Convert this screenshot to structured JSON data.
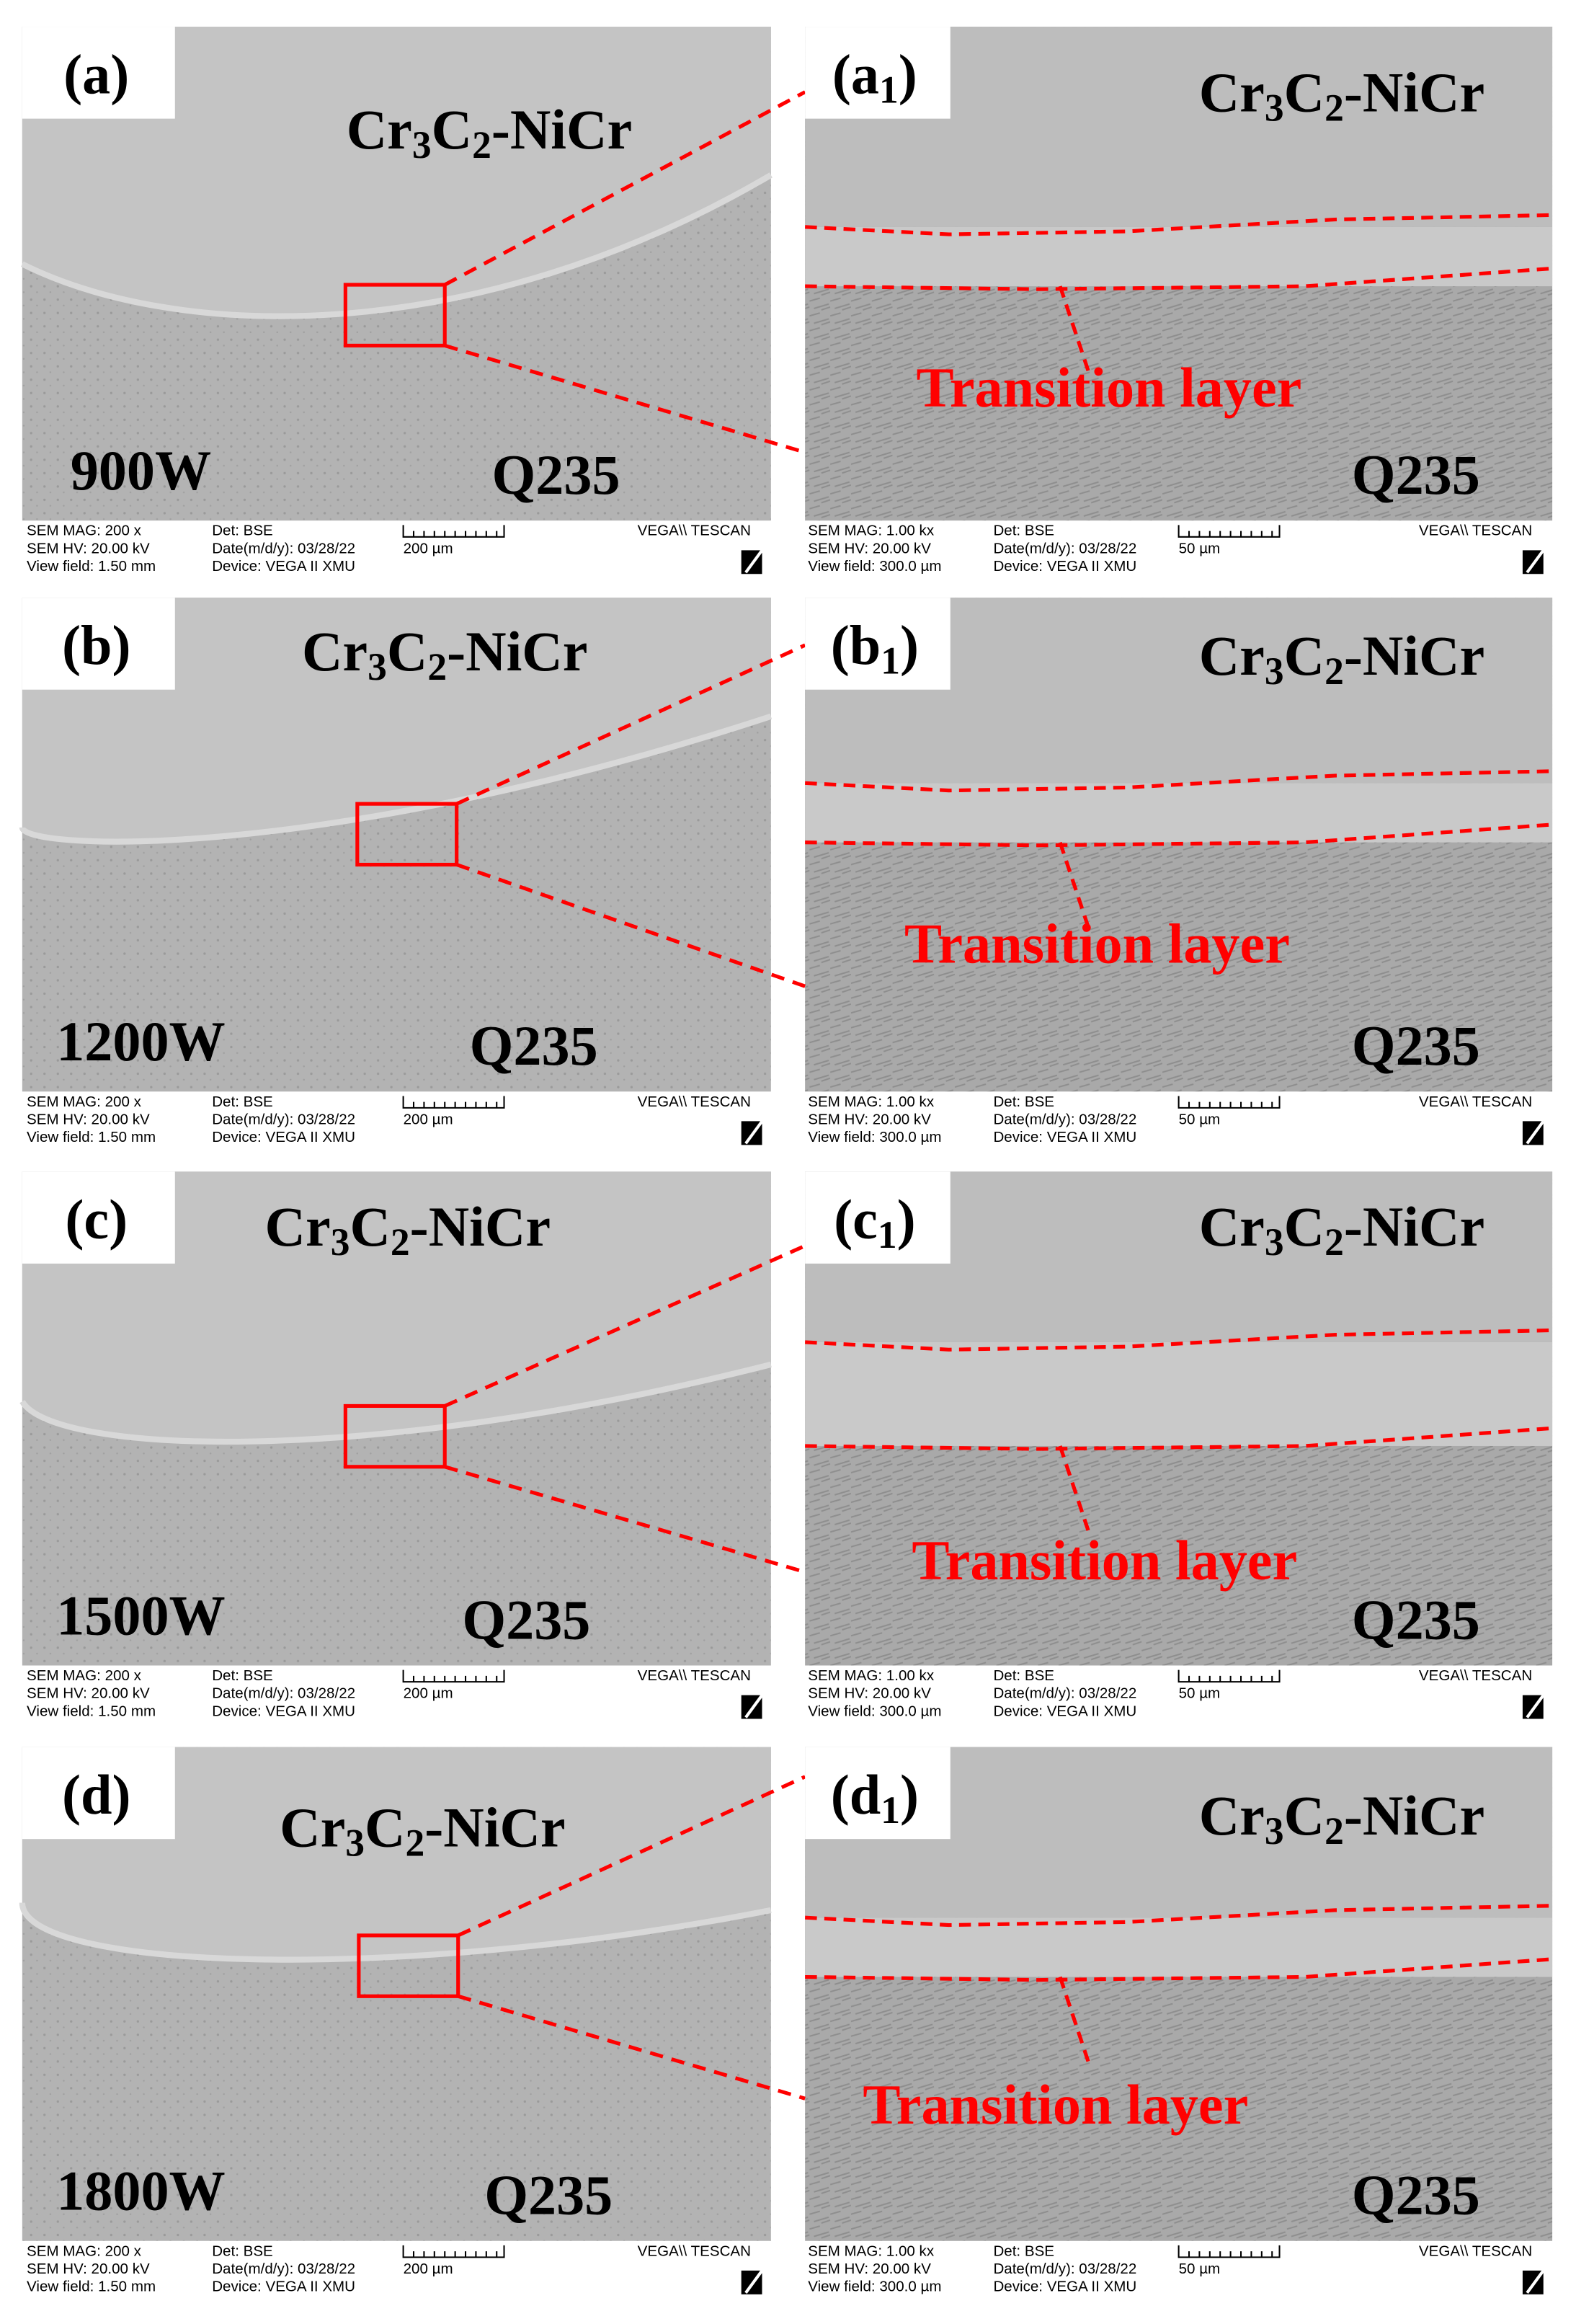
{
  "coating": [
    "Cr",
    "3",
    "C",
    "2",
    "-NiCr"
  ],
  "substrate": "Q235",
  "transition": "Transition layer",
  "sem_left": {
    "mag": "SEM MAG: 200 x",
    "hv": "SEM HV: 20.00 kV",
    "field": "View field: 1.50 mm",
    "det": "Det: BSE",
    "date": "Date(m/d/y): 03/28/22",
    "device": "Device: VEGA II XMU",
    "scale": "200 µm",
    "brand": "VEGA\\\\ TESCAN"
  },
  "sem_right": {
    "mag": "SEM MAG: 1.00 kx",
    "hv": "SEM HV: 20.00 kV",
    "field": "View field: 300.0 µm",
    "det": "Det: BSE",
    "date": "Date(m/d/y): 03/28/22",
    "device": "Device: VEGA II XMU",
    "scale": "50 µm",
    "brand": "VEGA\\\\ TESCAN"
  },
  "rows": [
    {
      "label": "(a)",
      "zoom_label": [
        "(a",
        "1",
        ")"
      ],
      "power": "900W"
    },
    {
      "label": "(b)",
      "zoom_label": [
        "(b",
        "1",
        ")"
      ],
      "power": "1200W"
    },
    {
      "label": "(c)",
      "zoom_label": [
        "(c",
        "1",
        ")"
      ],
      "power": "1500W"
    },
    {
      "label": "(d)",
      "zoom_label": [
        "(d",
        "1",
        ")"
      ],
      "power": "1800W"
    }
  ]
}
